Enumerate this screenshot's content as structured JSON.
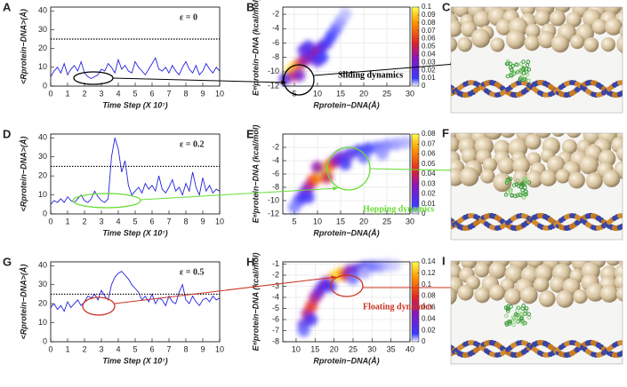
{
  "chart_data": [
    {
      "type": "line",
      "panel": "A",
      "annotation": "ε = 0",
      "color": "#2222dd",
      "xlabel": "Time Step (X 10⁷)",
      "ylabel": "<Rprotein−DNA>(Å)",
      "x": [
        0,
        0.2,
        0.4,
        0.6,
        0.8,
        1,
        1.2,
        1.4,
        1.6,
        1.8,
        2,
        2.2,
        2.4,
        2.6,
        2.8,
        3,
        3.2,
        3.4,
        3.6,
        3.8,
        4,
        4.2,
        4.4,
        4.6,
        4.8,
        5,
        5.2,
        5.4,
        5.6,
        5.8,
        6,
        6.2,
        6.4,
        6.6,
        6.8,
        7,
        7.2,
        7.4,
        7.6,
        7.8,
        8,
        8.2,
        8.4,
        8.6,
        8.8,
        9,
        9.2,
        9.4,
        9.6,
        9.8,
        10
      ],
      "values": [
        5,
        8,
        10,
        7,
        12,
        6,
        9,
        11,
        8,
        13,
        7,
        5,
        4,
        5,
        6,
        9,
        8,
        12,
        10,
        7,
        14,
        9,
        11,
        8,
        7,
        13,
        10,
        8,
        6,
        9,
        12,
        15,
        9,
        8,
        10,
        7,
        11,
        8,
        6,
        10,
        13,
        9,
        7,
        11,
        6,
        8,
        12,
        9,
        7,
        10,
        8
      ],
      "hline": 25,
      "xlim": [
        0,
        10
      ],
      "ylim": [
        0,
        42
      ],
      "xticks": [
        0,
        1,
        2,
        3,
        4,
        5,
        6,
        7,
        8,
        9,
        10
      ],
      "yticks": [
        0,
        10,
        20,
        30,
        40
      ],
      "highlight_color": "#000000"
    },
    {
      "type": "density",
      "panel": "B",
      "annotation": "Sliding dynamics",
      "highlight_color": "#000000",
      "xlabel": "Rprotein−DNA(Å)",
      "ylabel": "Eᵉˡprotein−DNA (kcal/mol)",
      "x": [
        4,
        5,
        6,
        4.5,
        7,
        9,
        10,
        8.5,
        11,
        12,
        13,
        14,
        15,
        10,
        3,
        6,
        8,
        11,
        16,
        7
      ],
      "y": [
        -10,
        -9.5,
        -9,
        -10.5,
        -8.5,
        -7.5,
        -7,
        -8,
        -6.5,
        -6,
        -5,
        -4,
        -3,
        -8.5,
        -11,
        -10.5,
        -6.5,
        -8,
        -2,
        -7
      ],
      "values": [
        0.1,
        0.09,
        0.07,
        0.06,
        0.04,
        0.05,
        0.04,
        0.03,
        0.02,
        0.015,
        0.01,
        0.008,
        0.005,
        0.02,
        0.02,
        0.03,
        0.015,
        0.01,
        0.003,
        0.02
      ],
      "xlim": [
        2.5,
        30
      ],
      "ylim": [
        -12,
        -1
      ],
      "xticks": [
        5,
        10,
        15,
        20,
        25,
        30
      ],
      "yticks": [
        -12,
        -10,
        -8,
        -6,
        -4,
        -2
      ],
      "clim": [
        0,
        0.1
      ],
      "cticks": [
        0,
        0.01,
        0.02,
        0.03,
        0.04,
        0.05,
        0.06,
        0.07,
        0.08,
        0.09,
        0.1
      ],
      "grid": true
    },
    {
      "type": "line",
      "panel": "D",
      "annotation": "ε = 0.2",
      "color": "#2222dd",
      "xlabel": "Time Step (X 10⁷)",
      "ylabel": "<Rprotein−DNA>(Å)",
      "x": [
        0,
        0.2,
        0.4,
        0.6,
        0.8,
        1,
        1.2,
        1.4,
        1.6,
        1.8,
        2,
        2.2,
        2.4,
        2.6,
        2.8,
        3,
        3.2,
        3.4,
        3.6,
        3.8,
        4,
        4.2,
        4.4,
        4.6,
        4.8,
        5,
        5.2,
        5.4,
        5.6,
        5.8,
        6,
        6.2,
        6.4,
        6.6,
        6.8,
        7,
        7.2,
        7.4,
        7.6,
        7.8,
        8,
        8.2,
        8.4,
        8.6,
        8.8,
        9,
        9.2,
        9.4,
        9.6,
        9.8,
        10
      ],
      "values": [
        5,
        7,
        6,
        8,
        6,
        9,
        7,
        6,
        8,
        10,
        7,
        6,
        8,
        12,
        9,
        7,
        6,
        8,
        30,
        40,
        34,
        22,
        28,
        15,
        10,
        12,
        14,
        11,
        16,
        13,
        15,
        12,
        20,
        13,
        11,
        14,
        18,
        12,
        14,
        10,
        16,
        12,
        22,
        14,
        10,
        19,
        12,
        15,
        11,
        13,
        12
      ],
      "hline": 25,
      "xlim": [
        0,
        10
      ],
      "ylim": [
        0,
        42
      ],
      "xticks": [
        0,
        1,
        2,
        3,
        4,
        5,
        6,
        7,
        8,
        9,
        10
      ],
      "yticks": [
        0,
        10,
        20,
        30,
        40
      ],
      "highlight_color": "#66dd33"
    },
    {
      "type": "density",
      "panel": "E",
      "annotation": "Hopping dynamics",
      "highlight_color": "#66dd33",
      "xlabel": "Rprotein−DNA(Å)",
      "ylabel": "Eᵉˡprotein−DNA (kcal/mol)",
      "x": [
        6,
        7,
        8,
        9,
        10,
        11,
        12,
        13,
        14,
        12,
        10,
        15,
        17,
        19,
        21,
        23,
        25,
        27,
        29,
        16,
        20,
        24,
        5,
        8
      ],
      "y": [
        -10,
        -9,
        -8,
        -7,
        -6.5,
        -5.5,
        -5,
        -4.5,
        -4,
        -6.5,
        -5,
        -3.5,
        -3,
        -2.5,
        -2.2,
        -2,
        -1.7,
        -1.5,
        -1.3,
        -4.5,
        -3.5,
        -3,
        -11,
        -9.5
      ],
      "values": [
        0.01,
        0.015,
        0.03,
        0.045,
        0.06,
        0.08,
        0.07,
        0.05,
        0.03,
        0.04,
        0.03,
        0.02,
        0.015,
        0.01,
        0.008,
        0.006,
        0.005,
        0.004,
        0.003,
        0.01,
        0.006,
        0.004,
        0.005,
        0.01
      ],
      "xlim": [
        2.5,
        30
      ],
      "ylim": [
        -12,
        0
      ],
      "xticks": [
        5,
        10,
        15,
        20,
        25,
        30
      ],
      "yticks": [
        -12,
        -10,
        -8,
        -6,
        -4,
        -2
      ],
      "clim": [
        0,
        0.08
      ],
      "cticks": [
        0,
        0.01,
        0.02,
        0.03,
        0.04,
        0.05,
        0.06,
        0.07,
        0.08
      ],
      "grid": true
    },
    {
      "type": "line",
      "panel": "G",
      "annotation": "ε = 0.5",
      "color": "#2222dd",
      "xlabel": "Time Step (X 10⁷)",
      "ylabel": "<Rprotein−DNA>(Å)",
      "x": [
        0,
        0.2,
        0.4,
        0.6,
        0.8,
        1,
        1.2,
        1.4,
        1.6,
        1.8,
        2,
        2.2,
        2.4,
        2.6,
        2.8,
        3,
        3.2,
        3.4,
        3.6,
        3.8,
        4,
        4.2,
        4.4,
        4.6,
        4.8,
        5,
        5.2,
        5.4,
        5.6,
        5.8,
        6,
        6.2,
        6.4,
        6.6,
        6.8,
        7,
        7.2,
        7.4,
        7.6,
        7.8,
        8,
        8.2,
        8.4,
        8.6,
        8.8,
        9,
        9.2,
        9.4,
        9.6,
        9.8,
        10
      ],
      "values": [
        18,
        20,
        17,
        19,
        16,
        21,
        18,
        20,
        22,
        19,
        21,
        24,
        23,
        25,
        22,
        27,
        24,
        22,
        30,
        34,
        36,
        37,
        35,
        33,
        30,
        28,
        26,
        22,
        24,
        21,
        25,
        20,
        23,
        22,
        19,
        24,
        21,
        20,
        26,
        30,
        22,
        20,
        24,
        21,
        19,
        22,
        23,
        21,
        24,
        22,
        23
      ],
      "hline": 25,
      "xlim": [
        0,
        10
      ],
      "ylim": [
        0,
        42
      ],
      "xticks": [
        0,
        1,
        2,
        3,
        4,
        5,
        6,
        7,
        8,
        9,
        10
      ],
      "yticks": [
        0,
        10,
        20,
        30,
        40
      ],
      "highlight_color": "#cc3322"
    },
    {
      "type": "density",
      "panel": "H",
      "annotation": "Floating dynamics",
      "highlight_color": "#cc3322",
      "xlabel": "Rprotein−DNA(Å)",
      "ylabel": "Eᵉˡprotein−DNA (kcal/mol)",
      "x": [
        12,
        13,
        14,
        15,
        16,
        17,
        18,
        20,
        21,
        22,
        23,
        24,
        26,
        28,
        30,
        32,
        34,
        36,
        12,
        14,
        19,
        25,
        28
      ],
      "y": [
        -6.5,
        -5.5,
        -4.8,
        -4,
        -3.5,
        -3,
        -2.7,
        -2.2,
        -2,
        -1.8,
        -2,
        -1.6,
        -1.5,
        -1.3,
        -1.2,
        -1.2,
        -1.1,
        -1.1,
        -7,
        -6,
        -3,
        -2.3,
        -1.8
      ],
      "values": [
        0.03,
        0.06,
        0.08,
        0.06,
        0.04,
        0.03,
        0.04,
        0.1,
        0.14,
        0.12,
        0.08,
        0.05,
        0.03,
        0.02,
        0.01,
        0.008,
        0.005,
        0.003,
        0.01,
        0.02,
        0.02,
        0.01,
        0.005
      ],
      "xlim": [
        6.5,
        40
      ],
      "ylim": [
        -8,
        -0.8
      ],
      "xticks": [
        10,
        15,
        20,
        25,
        30,
        35,
        40
      ],
      "yticks": [
        -8,
        -7,
        -6,
        -5,
        -4,
        -3,
        -2,
        -1
      ],
      "clim": [
        0,
        0.14
      ],
      "cticks": [
        0,
        0.02,
        0.04,
        0.06,
        0.08,
        0.1,
        0.12,
        0.14
      ],
      "grid": true
    }
  ],
  "images": [
    {
      "panel": "C"
    },
    {
      "panel": "F"
    },
    {
      "panel": "I"
    }
  ]
}
